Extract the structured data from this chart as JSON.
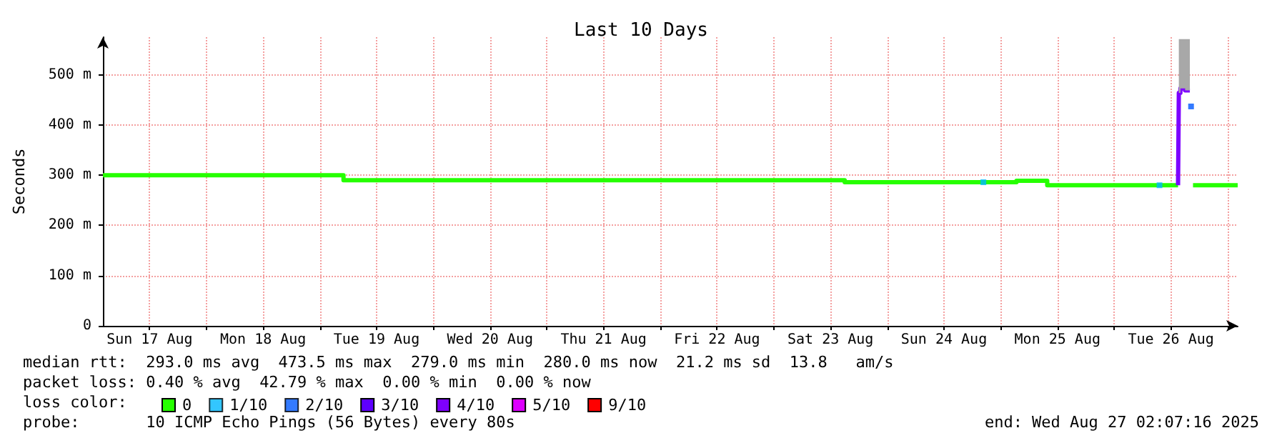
{
  "chart_data": {
    "type": "step",
    "title": "Last 10 Days",
    "ylabel": "Seconds",
    "legend_title": "loss color:",
    "legend": "bottom left",
    "xlim": [
      "2025-08-17T02:07",
      "2025-08-27T02:07"
    ],
    "xticks": [
      {
        "value": "2025-08-17T12:00",
        "label": "Sun 17 Aug"
      },
      {
        "value": "2025-08-18T00:00",
        "label": null
      },
      {
        "value": "2025-08-18T12:00",
        "label": "Mon 18 Aug"
      },
      {
        "value": "2025-08-19T00:00",
        "label": null
      },
      {
        "value": "2025-08-19T12:00",
        "label": "Tue 19 Aug"
      },
      {
        "value": "2025-08-20T00:00",
        "label": null
      },
      {
        "value": "2025-08-20T12:00",
        "label": "Wed 20 Aug"
      },
      {
        "value": "2025-08-21T00:00",
        "label": null
      },
      {
        "value": "2025-08-21T12:00",
        "label": "Thu 21 Aug"
      },
      {
        "value": "2025-08-22T00:00",
        "label": null
      },
      {
        "value": "2025-08-22T12:00",
        "label": "Fri 22 Aug"
      },
      {
        "value": "2025-08-23T00:00",
        "label": null
      },
      {
        "value": "2025-08-23T12:00",
        "label": "Sat 23 Aug"
      },
      {
        "value": "2025-08-24T00:00",
        "label": null
      },
      {
        "value": "2025-08-24T12:00",
        "label": "Sun 24 Aug"
      },
      {
        "value": "2025-08-25T00:00",
        "label": null
      },
      {
        "value": "2025-08-25T12:00",
        "label": "Mon 25 Aug"
      },
      {
        "value": "2025-08-26T00:00",
        "label": null
      },
      {
        "value": "2025-08-26T12:00",
        "label": "Tue 26 Aug"
      },
      {
        "value": "2025-08-27T00:00",
        "label": null
      }
    ],
    "ylim": [
      0,
      575
    ],
    "yticks": [
      0,
      {
        "value": 100,
        "label": "100 m"
      },
      {
        "value": 200,
        "label": "200 m"
      },
      {
        "value": 300,
        "label": "300 m"
      },
      {
        "value": 400,
        "label": "400 m"
      },
      {
        "value": 500,
        "label": "500 m"
      }
    ],
    "grid": true,
    "series": [
      {
        "name": "0",
        "color": "#26ff00",
        "x": [
          "2025-08-17T02:07",
          "2025-08-19T05:00",
          "2025-08-23T15:00",
          "2025-08-25T03:20",
          "2025-08-25T09:50",
          "2025-08-26T13:30",
          "2025-08-26T13:31",
          "2025-08-26T16:40",
          "2025-08-27T02:07"
        ],
        "values": [
          300,
          290,
          286,
          289,
          280,
          280,
          null,
          280,
          280
        ]
      },
      {
        "name": "1/10",
        "color": "#00b8ff",
        "type": "scatter",
        "marker": "square",
        "x": [
          "2025-08-24T20:20",
          "2025-08-26T09:35"
        ],
        "values": [
          286,
          280
        ]
      },
      {
        "name": "2/10",
        "color": "#0059ff",
        "type": "scatter",
        "marker": "square",
        "x": [
          "2025-08-26T16:15"
        ],
        "values": [
          437
        ]
      },
      {
        "name": "3/10",
        "color": "#5e00ff"
      },
      {
        "name": "4/10",
        "color": "#7e00ff",
        "x": [
          "2025-08-26T13:30",
          "2025-08-26T13:40",
          "2025-08-26T14:00",
          "2025-08-26T15:00",
          "2025-08-26T16:00"
        ],
        "values": [
          280,
          464,
          473,
          469,
          469
        ],
        "lower": [
          null,
          464,
          473,
          469,
          null
        ],
        "upper": [
          null,
          571,
          571,
          571,
          null
        ]
      },
      {
        "name": "5/10",
        "color": "#dd00ff"
      },
      {
        "name": "9/10",
        "color": "#ff0000"
      }
    ],
    "annotations": [
      "median rtt:  293.0 ms avg  473.5 ms max  279.0 ms min  280.0 ms now  21.2 ms sd  13.8   am/s",
      "packet loss: 0.40 % avg  42.79 % max  0.00 % min  0.00 % now",
      "probe:       10 ICMP Echo Pings (56 Bytes) every 80s",
      "end: Wed Aug 27 02:07:16 2025"
    ]
  }
}
